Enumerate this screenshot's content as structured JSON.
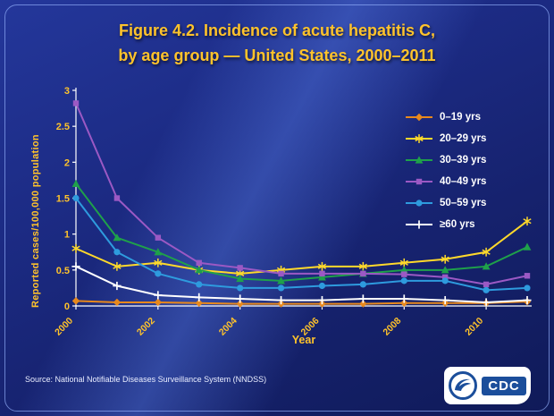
{
  "title": {
    "line1": "Figure 4.2. Incidence of acute hepatitis C,",
    "line2": "by age group — United States, 2000–2011"
  },
  "source_note": "Source: National Notifiable Diseases Surveillance System (NNDSS)",
  "logo": {
    "cdc_text": "CDC"
  },
  "chart_data": {
    "type": "line",
    "x": [
      2000,
      2001,
      2002,
      2003,
      2004,
      2005,
      2006,
      2007,
      2008,
      2009,
      2010,
      2011
    ],
    "x_tick_labels": [
      "2000",
      "2002",
      "2004",
      "2006",
      "2008",
      "2010"
    ],
    "xlabel": "Year",
    "ylabel": "Reported cases/100,000 population",
    "ylim": [
      0,
      3
    ],
    "yticks": [
      0,
      0.5,
      1,
      1.5,
      2,
      2.5,
      3
    ],
    "grid": false,
    "legend_position": "upper-right-inside",
    "axis_color": "#FFFFFF",
    "tick_label_color": "#FFC32B",
    "series": [
      {
        "name": "0–19 yrs",
        "color": "#E8891D",
        "marker": "diamond",
        "values": [
          0.07,
          0.05,
          0.05,
          0.04,
          0.03,
          0.03,
          0.03,
          0.03,
          0.04,
          0.04,
          0.04,
          0.06
        ]
      },
      {
        "name": "20–29 yrs",
        "color": "#FFD92B",
        "marker": "asterisk",
        "values": [
          0.8,
          0.55,
          0.6,
          0.5,
          0.45,
          0.5,
          0.55,
          0.55,
          0.6,
          0.65,
          0.75,
          1.18
        ]
      },
      {
        "name": "30–39 yrs",
        "color": "#1FA14A",
        "marker": "triangle",
        "values": [
          1.7,
          0.95,
          0.75,
          0.5,
          0.38,
          0.35,
          0.4,
          0.45,
          0.5,
          0.5,
          0.55,
          0.82
        ]
      },
      {
        "name": "40–49 yrs",
        "color": "#9B59C4",
        "marker": "square",
        "values": [
          2.82,
          1.5,
          0.95,
          0.6,
          0.53,
          0.45,
          0.45,
          0.45,
          0.44,
          0.4,
          0.3,
          0.42
        ]
      },
      {
        "name": "50–59 yrs",
        "color": "#2E9BDE",
        "marker": "circle",
        "values": [
          1.5,
          0.75,
          0.45,
          0.3,
          0.25,
          0.25,
          0.28,
          0.3,
          0.35,
          0.35,
          0.22,
          0.25
        ]
      },
      {
        "name": "≥60 yrs",
        "color": "#FFFFFF",
        "marker": "plus",
        "values": [
          0.55,
          0.28,
          0.15,
          0.12,
          0.1,
          0.08,
          0.08,
          0.1,
          0.1,
          0.08,
          0.05,
          0.08
        ]
      }
    ]
  }
}
